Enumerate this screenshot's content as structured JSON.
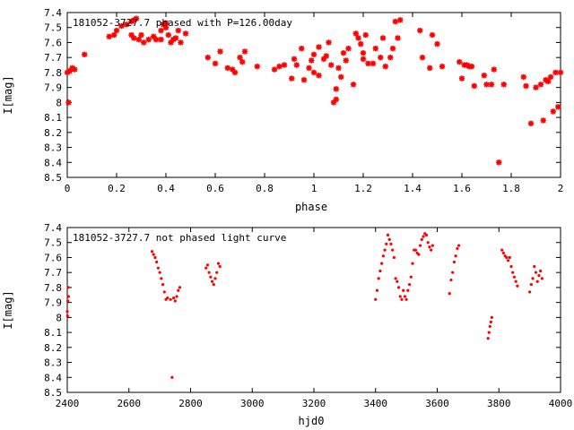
{
  "chart_data": [
    {
      "type": "scatter",
      "title": "181052-3727.7 phased with P=126.00day",
      "xlabel": "phase",
      "ylabel": "I[mag]",
      "xlim": [
        0,
        2
      ],
      "ylim": [
        7.4,
        8.5
      ],
      "y_inverted": true,
      "xticks": [
        0,
        0.2,
        0.4,
        0.6,
        0.8,
        1,
        1.2,
        1.4,
        1.6,
        1.8,
        2
      ],
      "xtick_labels": [
        "0",
        "0.2",
        "0.4",
        "0.6",
        "0.8",
        "1",
        "1.2",
        "1.4",
        "1.6",
        "1.8",
        "2"
      ],
      "yticks": [
        7.4,
        7.5,
        7.6,
        7.7,
        7.8,
        7.9,
        8.0,
        8.1,
        8.2,
        8.3,
        8.4,
        8.5
      ],
      "ytick_labels": [
        "7.4",
        "7.5",
        "7.6",
        "7.7",
        "7.8",
        "7.9",
        "8",
        "8.1",
        "8.2",
        "8.3",
        "8.4",
        "8.5"
      ],
      "grid": false,
      "marker": "star",
      "color": "#ff0000",
      "points": [
        [
          0.0,
          7.8
        ],
        [
          0.01,
          7.79
        ],
        [
          0.02,
          7.77
        ],
        [
          0.03,
          7.78
        ],
        [
          0.005,
          8.0
        ],
        [
          0.07,
          7.68
        ],
        [
          0.17,
          7.56
        ],
        [
          0.19,
          7.55
        ],
        [
          0.2,
          7.52
        ],
        [
          0.22,
          7.49
        ],
        [
          0.24,
          7.48
        ],
        [
          0.26,
          7.46
        ],
        [
          0.27,
          7.45
        ],
        [
          0.28,
          7.44
        ],
        [
          0.26,
          7.55
        ],
        [
          0.27,
          7.57
        ],
        [
          0.29,
          7.58
        ],
        [
          0.3,
          7.55
        ],
        [
          0.31,
          7.6
        ],
        [
          0.33,
          7.58
        ],
        [
          0.35,
          7.56
        ],
        [
          0.36,
          7.58
        ],
        [
          0.38,
          7.52
        ],
        [
          0.38,
          7.58
        ],
        [
          0.39,
          7.48
        ],
        [
          0.4,
          7.47
        ],
        [
          0.4,
          7.5
        ],
        [
          0.41,
          7.55
        ],
        [
          0.42,
          7.6
        ],
        [
          0.43,
          7.58
        ],
        [
          0.44,
          7.57
        ],
        [
          0.45,
          7.52
        ],
        [
          0.46,
          7.6
        ],
        [
          0.48,
          7.54
        ],
        [
          0.57,
          7.7
        ],
        [
          0.6,
          7.74
        ],
        [
          0.62,
          7.66
        ],
        [
          0.65,
          7.77
        ],
        [
          0.67,
          7.78
        ],
        [
          0.68,
          7.8
        ],
        [
          0.7,
          7.7
        ],
        [
          0.71,
          7.73
        ],
        [
          0.72,
          7.66
        ],
        [
          0.77,
          7.76
        ],
        [
          0.84,
          7.78
        ],
        [
          0.86,
          7.76
        ],
        [
          0.88,
          7.75
        ],
        [
          0.91,
          7.84
        ],
        [
          0.92,
          7.71
        ],
        [
          0.93,
          7.75
        ],
        [
          0.95,
          7.64
        ],
        [
          0.96,
          7.85
        ],
        [
          0.98,
          7.77
        ],
        [
          0.99,
          7.72
        ],
        [
          1.0,
          7.8
        ],
        [
          1.0,
          7.68
        ],
        [
          1.02,
          7.63
        ],
        [
          1.02,
          7.82
        ],
        [
          1.04,
          7.71
        ],
        [
          1.05,
          7.69
        ],
        [
          1.06,
          7.6
        ],
        [
          1.07,
          7.75
        ],
        [
          1.08,
          8.0
        ],
        [
          1.09,
          7.98
        ],
        [
          1.09,
          7.91
        ],
        [
          1.1,
          7.77
        ],
        [
          1.11,
          7.83
        ],
        [
          1.12,
          7.67
        ],
        [
          1.13,
          7.72
        ],
        [
          1.14,
          7.64
        ],
        [
          1.16,
          7.88
        ],
        [
          1.17,
          7.54
        ],
        [
          1.18,
          7.57
        ],
        [
          1.19,
          7.61
        ],
        [
          1.2,
          7.67
        ],
        [
          1.2,
          7.71
        ],
        [
          1.21,
          7.55
        ],
        [
          1.22,
          7.74
        ],
        [
          1.24,
          7.74
        ],
        [
          1.25,
          7.64
        ],
        [
          1.27,
          7.7
        ],
        [
          1.28,
          7.57
        ],
        [
          1.29,
          7.76
        ],
        [
          1.31,
          7.7
        ],
        [
          1.32,
          7.64
        ],
        [
          1.33,
          7.46
        ],
        [
          1.34,
          7.57
        ],
        [
          1.35,
          7.45
        ],
        [
          1.43,
          7.52
        ],
        [
          1.44,
          7.7
        ],
        [
          1.47,
          7.77
        ],
        [
          1.48,
          7.55
        ],
        [
          1.5,
          7.61
        ],
        [
          1.52,
          7.76
        ],
        [
          1.59,
          7.73
        ],
        [
          1.6,
          7.84
        ],
        [
          1.61,
          7.75
        ],
        [
          1.62,
          7.75
        ],
        [
          1.63,
          7.76
        ],
        [
          1.64,
          7.76
        ],
        [
          1.65,
          7.89
        ],
        [
          1.69,
          7.82
        ],
        [
          1.7,
          7.88
        ],
        [
          1.72,
          7.88
        ],
        [
          1.73,
          7.78
        ],
        [
          1.75,
          8.4
        ],
        [
          1.77,
          7.88
        ],
        [
          1.85,
          7.83
        ],
        [
          1.86,
          7.89
        ],
        [
          1.88,
          8.14
        ],
        [
          1.9,
          7.9
        ],
        [
          1.92,
          7.88
        ],
        [
          1.93,
          8.12
        ],
        [
          1.94,
          7.85
        ],
        [
          1.95,
          7.86
        ],
        [
          1.96,
          7.83
        ],
        [
          1.97,
          8.06
        ],
        [
          1.98,
          7.8
        ],
        [
          1.99,
          8.03
        ],
        [
          2.0,
          7.8
        ]
      ]
    },
    {
      "type": "scatter",
      "title": "181052-3727.7 not phased light curve",
      "xlabel": "hjd0",
      "ylabel": "I[mag]",
      "xlim": [
        2400,
        4000
      ],
      "ylim": [
        7.4,
        8.5
      ],
      "y_inverted": true,
      "xticks": [
        2400,
        2600,
        2800,
        3000,
        3200,
        3400,
        3600,
        3800,
        4000
      ],
      "xtick_labels": [
        "2400",
        "2600",
        "2800",
        "3000",
        "3200",
        "3400",
        "3600",
        "3800",
        "4000"
      ],
      "yticks": [
        7.4,
        7.5,
        7.6,
        7.7,
        7.8,
        7.9,
        8.0,
        8.1,
        8.2,
        8.3,
        8.4,
        8.5
      ],
      "ytick_labels": [
        "7.4",
        "7.5",
        "7.6",
        "7.7",
        "7.8",
        "7.9",
        "8",
        "8.1",
        "8.2",
        "8.3",
        "8.4",
        "8.5"
      ],
      "grid": false,
      "marker": "dot",
      "color": "#ff0000",
      "points": [
        [
          2400,
          7.96
        ],
        [
          2401,
          7.99
        ],
        [
          2402,
          7.89
        ],
        [
          2403,
          7.8
        ],
        [
          2404,
          7.86
        ],
        [
          2675,
          7.56
        ],
        [
          2680,
          7.58
        ],
        [
          2685,
          7.6
        ],
        [
          2690,
          7.63
        ],
        [
          2695,
          7.67
        ],
        [
          2700,
          7.7
        ],
        [
          2705,
          7.74
        ],
        [
          2710,
          7.78
        ],
        [
          2715,
          7.83
        ],
        [
          2720,
          7.88
        ],
        [
          2725,
          7.87
        ],
        [
          2735,
          7.88
        ],
        [
          2740,
          8.4
        ],
        [
          2745,
          7.87
        ],
        [
          2750,
          7.89
        ],
        [
          2755,
          7.86
        ],
        [
          2760,
          7.82
        ],
        [
          2765,
          7.8
        ],
        [
          2850,
          7.67
        ],
        [
          2855,
          7.65
        ],
        [
          2860,
          7.7
        ],
        [
          2865,
          7.73
        ],
        [
          2870,
          7.76
        ],
        [
          2875,
          7.78
        ],
        [
          2880,
          7.74
        ],
        [
          2885,
          7.7
        ],
        [
          2890,
          7.64
        ],
        [
          2895,
          7.66
        ],
        [
          3400,
          7.88
        ],
        [
          3405,
          7.82
        ],
        [
          3410,
          7.74
        ],
        [
          3415,
          7.69
        ],
        [
          3420,
          7.64
        ],
        [
          3425,
          7.59
        ],
        [
          3430,
          7.55
        ],
        [
          3435,
          7.51
        ],
        [
          3440,
          7.45
        ],
        [
          3445,
          7.48
        ],
        [
          3450,
          7.51
        ],
        [
          3455,
          7.55
        ],
        [
          3460,
          7.6
        ],
        [
          3465,
          7.74
        ],
        [
          3470,
          7.76
        ],
        [
          3475,
          7.8
        ],
        [
          3480,
          7.86
        ],
        [
          3485,
          7.88
        ],
        [
          3490,
          7.82
        ],
        [
          3495,
          7.86
        ],
        [
          3500,
          7.88
        ],
        [
          3505,
          7.82
        ],
        [
          3510,
          7.78
        ],
        [
          3515,
          7.73
        ],
        [
          3520,
          7.64
        ],
        [
          3525,
          7.55
        ],
        [
          3530,
          7.55
        ],
        [
          3535,
          7.57
        ],
        [
          3540,
          7.58
        ],
        [
          3545,
          7.52
        ],
        [
          3550,
          7.48
        ],
        [
          3555,
          7.46
        ],
        [
          3560,
          7.44
        ],
        [
          3565,
          7.45
        ],
        [
          3570,
          7.5
        ],
        [
          3575,
          7.53
        ],
        [
          3580,
          7.55
        ],
        [
          3585,
          7.52
        ],
        [
          3640,
          7.84
        ],
        [
          3645,
          7.75
        ],
        [
          3650,
          7.7
        ],
        [
          3655,
          7.63
        ],
        [
          3660,
          7.59
        ],
        [
          3665,
          7.54
        ],
        [
          3670,
          7.52
        ],
        [
          3765,
          8.14
        ],
        [
          3768,
          8.1
        ],
        [
          3771,
          8.06
        ],
        [
          3774,
          8.03
        ],
        [
          3777,
          8.0
        ],
        [
          3810,
          7.55
        ],
        [
          3815,
          7.57
        ],
        [
          3820,
          7.59
        ],
        [
          3825,
          7.6
        ],
        [
          3830,
          7.62
        ],
        [
          3835,
          7.6
        ],
        [
          3840,
          7.66
        ],
        [
          3845,
          7.7
        ],
        [
          3850,
          7.73
        ],
        [
          3855,
          7.76
        ],
        [
          3860,
          7.79
        ],
        [
          3900,
          7.83
        ],
        [
          3905,
          7.78
        ],
        [
          3910,
          7.74
        ],
        [
          3915,
          7.66
        ],
        [
          3920,
          7.7
        ],
        [
          3925,
          7.76
        ],
        [
          3930,
          7.72
        ],
        [
          3935,
          7.69
        ],
        [
          3940,
          7.74
        ]
      ]
    }
  ]
}
